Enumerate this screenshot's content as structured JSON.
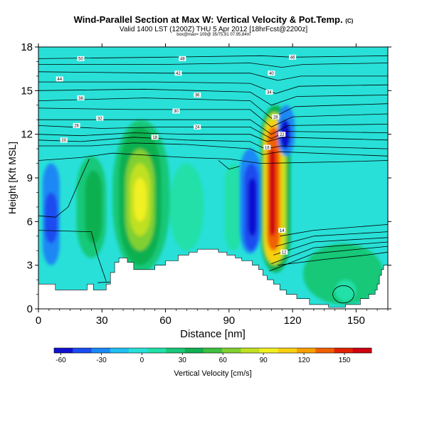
{
  "title": {
    "line1": "Wind-Parallel Section at Max W: Vertical Velocity & Pot.Temp.",
    "copyright": "(C)",
    "line2": "Valid 1400 LST (1200Z) THU 5 Apr 2012 [18hrFcst@2200z]",
    "line3": "box@max= 109@ 35/75,91 07.95,84m"
  },
  "chart_data": {
    "type": "heatmap",
    "xlabel": "Distance [nm]",
    "ylabel": "Height [Kft MSL]",
    "xlim": [
      0,
      165
    ],
    "ylim": [
      0,
      18
    ],
    "xticks": [
      0,
      30,
      60,
      90,
      120,
      150
    ],
    "yticks": [
      0,
      3,
      6,
      9,
      12,
      15,
      18
    ],
    "colorbar": {
      "label": "Vertical Velocity [cm/s]",
      "ticks": [
        -60,
        -30,
        0,
        30,
        60,
        90,
        120,
        150
      ],
      "range": [
        -65,
        170
      ],
      "colors": [
        "#1010d0",
        "#1a4cf0",
        "#1a88f5",
        "#20c0f0",
        "#28e0d8",
        "#20e0a8",
        "#18c878",
        "#10b050",
        "#40c040",
        "#80d030",
        "#c0e020",
        "#f0f020",
        "#f8d010",
        "#f8a000",
        "#f06000",
        "#e02000",
        "#d00010"
      ]
    },
    "background_value": 2,
    "cells": [
      {
        "x": [
          2,
          10
        ],
        "y": [
          3,
          10
        ],
        "v": -30
      },
      {
        "x": [
          3,
          9
        ],
        "y": [
          4.5,
          8
        ],
        "v": -45
      },
      {
        "x": [
          18,
          32
        ],
        "y": [
          3.5,
          10.5
        ],
        "v": 20
      },
      {
        "x": [
          22,
          30
        ],
        "y": [
          4.5,
          9.5
        ],
        "v": 35
      },
      {
        "x": [
          35,
          62
        ],
        "y": [
          2.5,
          13
        ],
        "v": 20
      },
      {
        "x": [
          38,
          58
        ],
        "y": [
          3,
          12.5
        ],
        "v": 38
      },
      {
        "x": [
          41,
          55
        ],
        "y": [
          4,
          11
        ],
        "v": 62
      },
      {
        "x": [
          43,
          53
        ],
        "y": [
          5,
          10
        ],
        "v": 82
      },
      {
        "x": [
          45,
          51
        ],
        "y": [
          6,
          9
        ],
        "v": 92
      },
      {
        "x": [
          62,
          78
        ],
        "y": [
          4,
          10
        ],
        "v": 10
      },
      {
        "x": [
          88,
          96
        ],
        "y": [
          4,
          10
        ],
        "v": 12
      },
      {
        "x": [
          95,
          105
        ],
        "y": [
          3.8,
          11
        ],
        "v": -25
      },
      {
        "x": [
          97,
          104
        ],
        "y": [
          4,
          10
        ],
        "v": -50
      },
      {
        "x": [
          99,
          103
        ],
        "y": [
          5,
          9
        ],
        "v": -62
      },
      {
        "x": [
          105,
          119
        ],
        "y": [
          2.5,
          14
        ],
        "v": 40
      },
      {
        "x": [
          106,
          117
        ],
        "y": [
          3,
          13.5
        ],
        "v": 75
      },
      {
        "x": [
          107,
          115
        ],
        "y": [
          3.2,
          13
        ],
        "v": 110
      },
      {
        "x": [
          108,
          114
        ],
        "y": [
          4,
          12.5
        ],
        "v": 140
      },
      {
        "x": [
          109,
          112
        ],
        "y": [
          5,
          11
        ],
        "v": 165
      },
      {
        "x": [
          113,
          121
        ],
        "y": [
          10.5,
          14
        ],
        "v": -30
      },
      {
        "x": [
          114,
          119
        ],
        "y": [
          11,
          13
        ],
        "v": -55
      },
      {
        "x": [
          125,
          163
        ],
        "y": [
          0.3,
          4.5
        ],
        "v": 22
      },
      {
        "x": [
          131,
          158
        ],
        "y": [
          0.3,
          3.3
        ],
        "v": 28
      },
      {
        "x": [
          140,
          150
        ],
        "y": [
          0.5,
          2
        ],
        "v": 12
      }
    ],
    "terrain": [
      [
        0,
        1.7
      ],
      [
        8,
        1.7
      ],
      [
        8,
        1.3
      ],
      [
        23,
        1.3
      ],
      [
        23,
        1.7
      ],
      [
        26,
        1.7
      ],
      [
        26,
        1.3
      ],
      [
        32,
        1.3
      ],
      [
        32,
        1.7
      ],
      [
        34,
        1.7
      ],
      [
        34,
        2.5
      ],
      [
        36,
        2.5
      ],
      [
        36,
        3.2
      ],
      [
        38,
        3.2
      ],
      [
        38,
        3.5
      ],
      [
        42,
        3.5
      ],
      [
        42,
        3.2
      ],
      [
        45,
        3.2
      ],
      [
        45,
        2.7
      ],
      [
        55,
        2.7
      ],
      [
        55,
        3.0
      ],
      [
        60,
        3.0
      ],
      [
        60,
        3.3
      ],
      [
        66,
        3.3
      ],
      [
        66,
        3.7
      ],
      [
        71,
        3.7
      ],
      [
        71,
        3.9
      ],
      [
        75,
        3.9
      ],
      [
        75,
        4.1
      ],
      [
        85,
        4.1
      ],
      [
        85,
        3.9
      ],
      [
        89,
        3.9
      ],
      [
        89,
        3.7
      ],
      [
        93,
        3.7
      ],
      [
        93,
        3.5
      ],
      [
        96,
        3.5
      ],
      [
        96,
        3.3
      ],
      [
        101,
        3.3
      ],
      [
        101,
        3.0
      ],
      [
        104,
        3.0
      ],
      [
        104,
        2.7
      ],
      [
        106,
        2.7
      ],
      [
        106,
        2.3
      ],
      [
        108,
        2.3
      ],
      [
        108,
        2.0
      ],
      [
        111,
        2.0
      ],
      [
        111,
        1.7
      ],
      [
        114,
        1.7
      ],
      [
        114,
        1.3
      ],
      [
        117,
        1.3
      ],
      [
        117,
        1.0
      ],
      [
        122,
        1.0
      ],
      [
        122,
        0.7
      ],
      [
        128,
        0.7
      ],
      [
        128,
        0.3
      ],
      [
        137,
        0.3
      ],
      [
        137,
        0.1
      ],
      [
        145,
        0.1
      ],
      [
        145,
        0.3
      ],
      [
        152,
        0.3
      ],
      [
        152,
        0.7
      ],
      [
        156,
        0.7
      ],
      [
        156,
        1.0
      ],
      [
        159,
        1.0
      ],
      [
        159,
        1.3
      ],
      [
        160,
        1.3
      ],
      [
        160,
        1.7
      ],
      [
        161,
        1.7
      ],
      [
        161,
        2.3
      ],
      [
        162,
        2.3
      ],
      [
        162,
        2.7
      ],
      [
        163,
        2.7
      ],
      [
        163,
        3.0
      ],
      [
        165,
        3.0
      ]
    ],
    "isentropes": [
      {
        "points": [
          [
            0,
            17.2
          ],
          [
            60,
            17.3
          ],
          [
            105,
            17.4
          ],
          [
            120,
            17.3
          ],
          [
            165,
            17.4
          ]
        ]
      },
      {
        "points": [
          [
            0,
            16.8
          ],
          [
            60,
            16.8
          ],
          [
            100,
            16.9
          ],
          [
            115,
            16.6
          ],
          [
            125,
            16.8
          ],
          [
            165,
            16.9
          ]
        ]
      },
      {
        "points": [
          [
            0,
            16.3
          ],
          [
            60,
            16.2
          ],
          [
            100,
            16.2
          ],
          [
            113,
            15.7
          ],
          [
            124,
            16.0
          ],
          [
            165,
            16.0
          ]
        ]
      },
      {
        "points": [
          [
            0,
            15.6
          ],
          [
            55,
            15.6
          ],
          [
            100,
            15.5
          ],
          [
            112,
            14.8
          ],
          [
            123,
            15.3
          ],
          [
            165,
            15.4
          ]
        ]
      },
      {
        "points": [
          [
            0,
            15.0
          ],
          [
            50,
            15.1
          ],
          [
            100,
            14.9
          ],
          [
            110,
            14.0
          ],
          [
            122,
            14.6
          ],
          [
            165,
            14.7
          ]
        ]
      },
      {
        "points": [
          [
            0,
            14.3
          ],
          [
            50,
            14.5
          ],
          [
            100,
            14.3
          ],
          [
            110,
            13.1
          ],
          [
            121,
            13.9
          ],
          [
            165,
            14.1
          ]
        ]
      },
      {
        "points": [
          [
            0,
            13.8
          ],
          [
            45,
            13.7
          ],
          [
            100,
            13.7
          ],
          [
            110,
            12.5
          ],
          [
            120,
            13.2
          ],
          [
            165,
            13.4
          ]
        ]
      },
      {
        "points": [
          [
            0,
            13.0
          ],
          [
            40,
            13.0
          ],
          [
            100,
            13.0
          ],
          [
            110,
            12.0
          ],
          [
            118,
            12.6
          ],
          [
            165,
            12.7
          ]
        ]
      },
      {
        "points": [
          [
            0,
            12.6
          ],
          [
            30,
            12.4
          ],
          [
            60,
            12.5
          ],
          [
            100,
            12.5
          ],
          [
            110,
            11.7
          ],
          [
            117,
            12.2
          ],
          [
            165,
            12.1
          ]
        ]
      },
      {
        "points": [
          [
            0,
            12.0
          ],
          [
            20,
            11.9
          ],
          [
            45,
            12.1
          ],
          [
            70,
            12.0
          ],
          [
            100,
            12.0
          ],
          [
            108,
            11.5
          ],
          [
            116,
            11.8
          ],
          [
            165,
            11.6
          ]
        ]
      },
      {
        "points": [
          [
            0,
            11.6
          ],
          [
            20,
            11.5
          ],
          [
            45,
            11.8
          ],
          [
            70,
            11.6
          ],
          [
            100,
            11.5
          ],
          [
            107,
            11.0
          ],
          [
            115,
            11.2
          ],
          [
            165,
            11.0
          ]
        ]
      },
      {
        "points": [
          [
            0,
            11.2
          ],
          [
            25,
            11.2
          ],
          [
            45,
            11.4
          ],
          [
            70,
            11.3
          ],
          [
            100,
            11.0
          ],
          [
            106,
            10.6
          ],
          [
            114,
            10.8
          ],
          [
            165,
            10.5
          ]
        ]
      },
      {
        "points": [
          [
            0,
            10.2
          ],
          [
            20,
            10.4
          ],
          [
            35,
            10.7
          ],
          [
            70,
            10.4
          ],
          [
            90,
            10.3
          ],
          [
            105,
            10.0
          ],
          [
            140,
            10.1
          ],
          [
            165,
            10.2
          ]
        ]
      },
      {
        "points": [
          [
            0,
            6.4
          ],
          [
            8,
            6.3
          ],
          [
            14,
            7.0
          ],
          [
            20,
            9.0
          ],
          [
            24,
            10.3
          ]
        ]
      },
      {
        "points": [
          [
            85,
            10.2
          ],
          [
            90,
            9.6
          ],
          [
            95,
            9.8
          ]
        ]
      },
      {
        "points": [
          [
            114,
            5.0
          ],
          [
            130,
            5.4
          ],
          [
            165,
            5.8
          ]
        ]
      },
      {
        "points": [
          [
            112,
            4.3
          ],
          [
            130,
            5.0
          ],
          [
            165,
            5.3
          ]
        ]
      },
      {
        "points": [
          [
            111,
            3.7
          ],
          [
            130,
            4.6
          ],
          [
            165,
            4.9
          ]
        ]
      },
      {
        "points": [
          [
            110,
            3.1
          ],
          [
            130,
            4.2
          ],
          [
            165,
            4.6
          ]
        ]
      },
      {
        "points": [
          [
            109,
            2.6
          ],
          [
            130,
            3.8
          ],
          [
            165,
            4.3
          ]
        ]
      },
      {
        "points": [
          [
            113,
            3.0
          ],
          [
            135,
            3.4
          ],
          [
            155,
            3.7
          ],
          [
            165,
            3.9
          ]
        ]
      },
      {
        "points": [
          [
            0,
            5.4
          ],
          [
            25,
            5.3
          ],
          [
            28,
            3.6
          ],
          [
            32,
            1.9
          ]
        ]
      },
      {
        "points": [
          [
            28,
            1.8
          ],
          [
            40,
            1.9
          ],
          [
            60,
            1.9
          ]
        ]
      }
    ],
    "closed_contours": [
      {
        "cx": 144,
        "cy": 1.0,
        "rx": 5,
        "ry": 0.6
      }
    ],
    "contour_labels": [
      {
        "x": 20,
        "y": 17.2,
        "text": "50"
      },
      {
        "x": 68,
        "y": 17.2,
        "text": "48"
      },
      {
        "x": 120,
        "y": 17.3,
        "text": "46"
      },
      {
        "x": 10,
        "y": 15.8,
        "text": "44"
      },
      {
        "x": 66,
        "y": 16.2,
        "text": "42"
      },
      {
        "x": 110,
        "y": 16.2,
        "text": "40"
      },
      {
        "x": 20,
        "y": 14.5,
        "text": "38"
      },
      {
        "x": 75,
        "y": 14.7,
        "text": "36"
      },
      {
        "x": 109,
        "y": 14.9,
        "text": "34"
      },
      {
        "x": 29,
        "y": 13.1,
        "text": "32"
      },
      {
        "x": 65,
        "y": 13.6,
        "text": "30"
      },
      {
        "x": 112,
        "y": 13.2,
        "text": "28"
      },
      {
        "x": 18,
        "y": 12.6,
        "text": "26"
      },
      {
        "x": 75,
        "y": 12.5,
        "text": "24"
      },
      {
        "x": 115,
        "y": 12.0,
        "text": "22"
      },
      {
        "x": 12,
        "y": 11.6,
        "text": "20"
      },
      {
        "x": 55,
        "y": 11.8,
        "text": "18"
      },
      {
        "x": 108,
        "y": 11.1,
        "text": "16"
      },
      {
        "x": 115,
        "y": 5.4,
        "text": "14"
      },
      {
        "x": 116,
        "y": 3.9,
        "text": "12"
      }
    ]
  }
}
